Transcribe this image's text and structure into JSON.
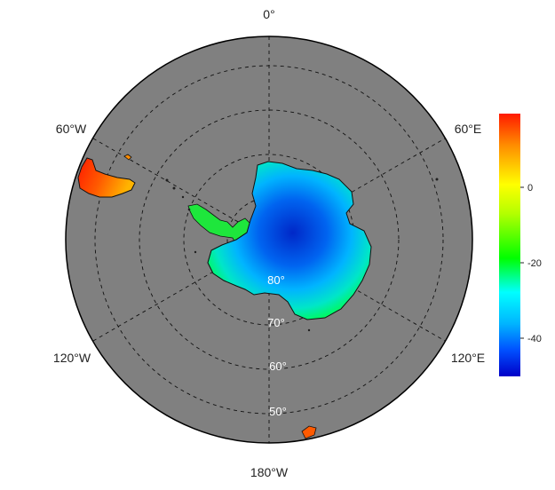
{
  "map": {
    "projection": "south-polar-stereographic",
    "background_color": "#808080",
    "longitude_labels": {
      "top": "0°",
      "left_upper": "60°W",
      "right_upper": "60°E",
      "left_lower": "120°W",
      "right_lower": "120°E",
      "bottom": "180°W"
    },
    "latitude_labels": [
      "80°",
      "70°",
      "60°",
      "50°"
    ],
    "gridlines": "dashed"
  },
  "colorbar": {
    "ticks": [
      "0",
      "-20",
      "-40"
    ],
    "colors": [
      "#ff1a00",
      "#ff8c00",
      "#ffff00",
      "#b4ff00",
      "#00ff00",
      "#00ffff",
      "#00b4ff",
      "#0050ff",
      "#0000c8"
    ]
  }
}
